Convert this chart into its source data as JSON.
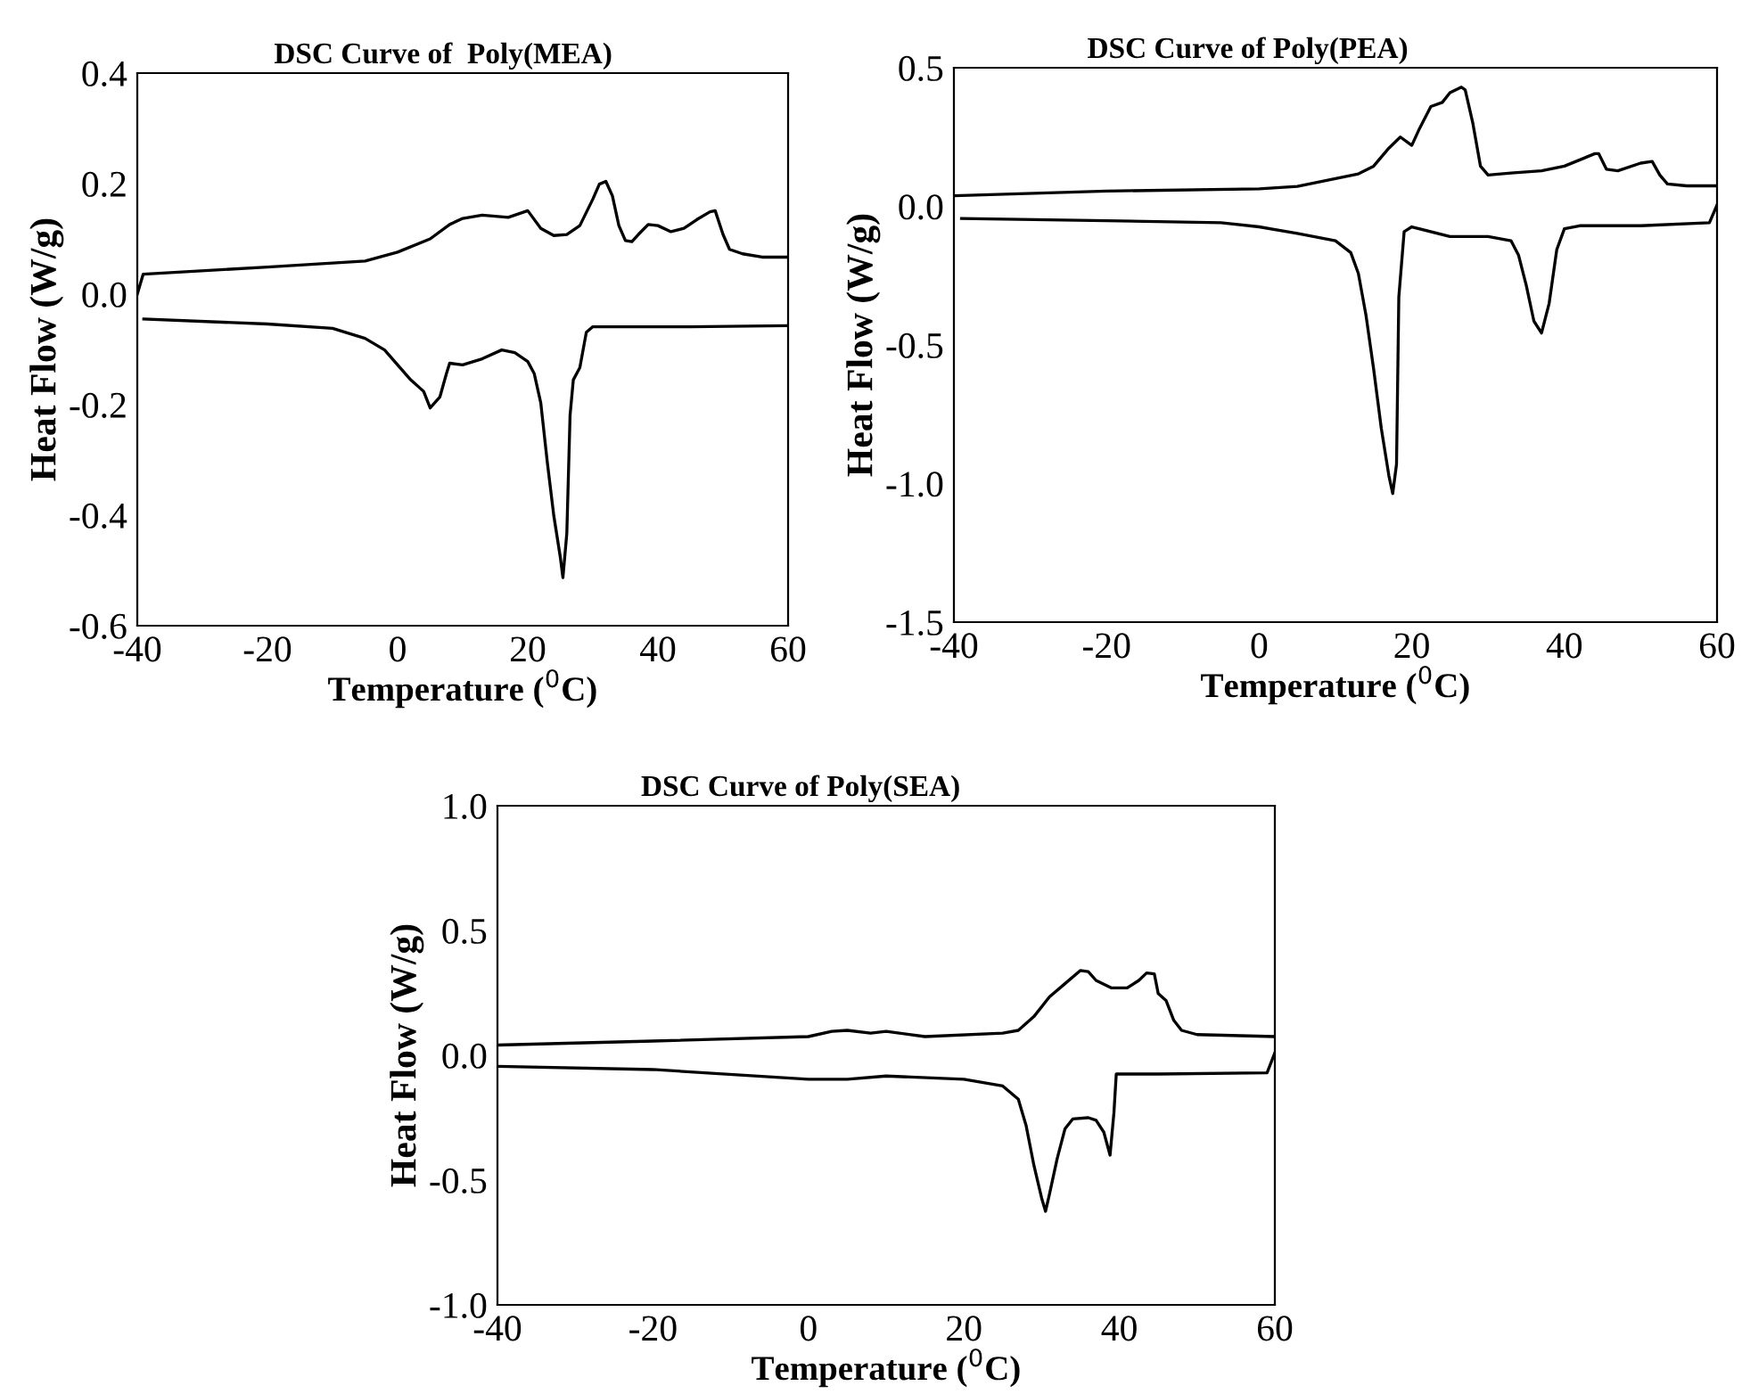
{
  "chart_data": [
    {
      "type": "line",
      "title": "DSC Curve of  Poly(MEA)",
      "xlabel": "Temperature ($^{0}$C)",
      "ylabel": "Heat Flow (W/g)",
      "xlim": [
        -40,
        60
      ],
      "xticks": [
        -40,
        -20,
        0,
        20,
        40,
        60
      ],
      "ylim": [
        -0.6,
        0.4
      ],
      "yticks": [
        {
          "value": -0.6,
          "label": "-0.6"
        },
        {
          "value": -0.4,
          "label": "-0.4"
        },
        {
          "value": -0.2,
          "label": "-0.2"
        },
        {
          "value": 0.0,
          "label": "0.0"
        },
        {
          "value": 0.2,
          "label": "0.2"
        },
        {
          "value": 0.4,
          "label": "0.4"
        }
      ],
      "series": [
        {
          "color": "#000000",
          "x": [
            -40,
            -39.1,
            -20,
            -5,
            0,
            5,
            8,
            10,
            13,
            17,
            20,
            22,
            24,
            26,
            28,
            30,
            31,
            32,
            33,
            34,
            35,
            36,
            37,
            38.5,
            40,
            42,
            44,
            46,
            48,
            48.8,
            50,
            51,
            53,
            56,
            60
          ],
          "values": [
            0.0,
            0.036,
            0.049,
            0.06,
            0.076,
            0.1,
            0.126,
            0.137,
            0.143,
            0.139,
            0.151,
            0.119,
            0.106,
            0.108,
            0.124,
            0.172,
            0.199,
            0.204,
            0.178,
            0.124,
            0.097,
            0.095,
            0.108,
            0.126,
            0.124,
            0.113,
            0.119,
            0.135,
            0.149,
            0.151,
            0.108,
            0.081,
            0.073,
            0.067,
            0.067
          ]
        },
        {
          "color": "#000000",
          "x": [
            -39,
            -20,
            -10,
            -5,
            -2,
            0,
            2,
            4,
            5,
            6.5,
            7.5,
            8,
            10,
            13,
            16,
            18,
            20,
            21,
            22,
            23,
            24,
            25,
            25.4,
            26,
            26.5,
            27,
            28,
            29,
            30,
            45,
            60
          ],
          "values": [
            -0.045,
            -0.054,
            -0.062,
            -0.08,
            -0.101,
            -0.128,
            -0.155,
            -0.176,
            -0.206,
            -0.186,
            -0.144,
            -0.125,
            -0.128,
            -0.117,
            -0.101,
            -0.106,
            -0.122,
            -0.144,
            -0.197,
            -0.304,
            -0.401,
            -0.476,
            -0.513,
            -0.433,
            -0.219,
            -0.155,
            -0.133,
            -0.069,
            -0.059,
            -0.059,
            -0.057
          ]
        }
      ]
    },
    {
      "type": "line",
      "title": "DSC Curve of Poly(PEA)",
      "xlabel": "Temperature ($^{0}$C)",
      "ylabel": "Heat Flow (W/g)",
      "xlim": [
        -40,
        60
      ],
      "xticks": [
        -40,
        -20,
        0,
        20,
        40,
        60
      ],
      "ylim": [
        -1.5,
        0.5
      ],
      "yticks": [
        {
          "value": -1.5,
          "label": "-1.5"
        },
        {
          "value": -1.0,
          "label": "-1.0"
        },
        {
          "value": -0.5,
          "label": "-0.5"
        },
        {
          "value": 0.0,
          "label": "0.0"
        },
        {
          "value": 0.5,
          "label": "0.5"
        }
      ],
      "series": [
        {
          "color": "#000000",
          "x": [
            -40,
            -20,
            0,
            5,
            10,
            13,
            15,
            17,
            18.5,
            20,
            21,
            22.5,
            24,
            25,
            26.5,
            27,
            28,
            29,
            30,
            33,
            37,
            40,
            44,
            44.5,
            45.5,
            47,
            50,
            51.5,
            52.5,
            53.5,
            56,
            60
          ],
          "values": [
            0.038,
            0.055,
            0.063,
            0.072,
            0.1,
            0.117,
            0.145,
            0.21,
            0.25,
            0.22,
            0.28,
            0.36,
            0.375,
            0.41,
            0.43,
            0.42,
            0.3,
            0.145,
            0.113,
            0.12,
            0.128,
            0.145,
            0.19,
            0.19,
            0.134,
            0.128,
            0.156,
            0.162,
            0.113,
            0.081,
            0.074,
            0.074
          ]
        },
        {
          "color": "#000000",
          "x": [
            -39,
            -20,
            -5,
            0,
            5,
            10,
            12,
            13,
            14,
            15,
            16,
            17,
            17.5,
            18,
            18.3,
            19,
            20,
            25,
            30,
            33,
            34,
            35,
            36,
            37,
            38,
            39,
            40,
            42,
            50,
            59,
            60
          ],
          "values": [
            -0.044,
            -0.052,
            -0.059,
            -0.074,
            -0.098,
            -0.124,
            -0.167,
            -0.242,
            -0.393,
            -0.587,
            -0.8,
            -0.972,
            -1.036,
            -0.93,
            -0.328,
            -0.091,
            -0.074,
            -0.109,
            -0.109,
            -0.124,
            -0.177,
            -0.285,
            -0.414,
            -0.457,
            -0.35,
            -0.156,
            -0.081,
            -0.07,
            -0.07,
            -0.059,
            0.005
          ]
        }
      ]
    },
    {
      "type": "line",
      "title": "DSC Curve of Poly(SEA)",
      "xlabel": "Temperature ($^{0}$C)",
      "ylabel": "Heat Flow (W/g)",
      "xlim": [
        -40,
        60
      ],
      "xticks": [
        -40,
        -20,
        0,
        20,
        40,
        60
      ],
      "ylim": [
        -1.0,
        1.0
      ],
      "yticks": [
        {
          "value": -1.0,
          "label": "-1.0"
        },
        {
          "value": -0.5,
          "label": "-0.5"
        },
        {
          "value": 0.0,
          "label": "0.0"
        },
        {
          "value": 0.5,
          "label": "0.5"
        },
        {
          "value": 1.0,
          "label": "1.0"
        }
      ],
      "series": [
        {
          "color": "#000000",
          "x": [
            -40,
            -20,
            0,
            3,
            5,
            8,
            10,
            15,
            25,
            27,
            29,
            31,
            33,
            35,
            36,
            37,
            39,
            41,
            42.5,
            43.5,
            44.5,
            45,
            46,
            47,
            48,
            50,
            60
          ],
          "values": [
            0.041,
            0.057,
            0.075,
            0.096,
            0.1,
            0.089,
            0.096,
            0.075,
            0.089,
            0.1,
            0.155,
            0.234,
            0.287,
            0.34,
            0.335,
            0.3,
            0.27,
            0.27,
            0.3,
            0.33,
            0.326,
            0.247,
            0.22,
            0.14,
            0.1,
            0.083,
            0.075
          ]
        },
        {
          "color": "#000000",
          "x": [
            -40,
            -20,
            0,
            5,
            10,
            20,
            25,
            27,
            28,
            29,
            30,
            30.5,
            31,
            32,
            33,
            34,
            36,
            37,
            38,
            38.8,
            39.3,
            39.6,
            45,
            59,
            60
          ],
          "values": [
            -0.044,
            -0.057,
            -0.096,
            -0.096,
            -0.083,
            -0.096,
            -0.123,
            -0.176,
            -0.281,
            -0.44,
            -0.572,
            -0.625,
            -0.558,
            -0.414,
            -0.295,
            -0.255,
            -0.25,
            -0.26,
            -0.308,
            -0.4,
            -0.23,
            -0.075,
            -0.075,
            -0.07,
            0.01
          ]
        }
      ]
    }
  ]
}
